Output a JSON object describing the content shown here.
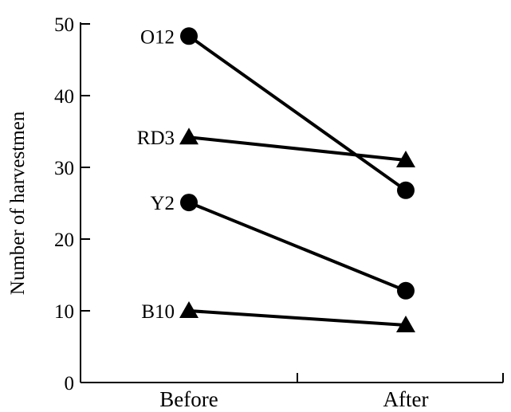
{
  "chart_data": {
    "type": "line",
    "title": "",
    "xlabel": "",
    "ylabel": "Number of harvestmen",
    "categories": [
      "Before",
      "After"
    ],
    "ylim": [
      0,
      50
    ],
    "yticks": [
      0,
      10,
      20,
      30,
      40,
      50
    ],
    "grid": false,
    "legend": "none",
    "series": [
      {
        "name": "O12",
        "marker": "circle",
        "values": [
          48.3,
          26.8
        ]
      },
      {
        "name": "RD3",
        "marker": "triangle",
        "values": [
          34.2,
          31.0
        ]
      },
      {
        "name": "Y2",
        "marker": "circle",
        "values": [
          25.1,
          12.8
        ]
      },
      {
        "name": "B10",
        "marker": "triangle",
        "values": [
          10.0,
          8.0
        ]
      }
    ]
  }
}
